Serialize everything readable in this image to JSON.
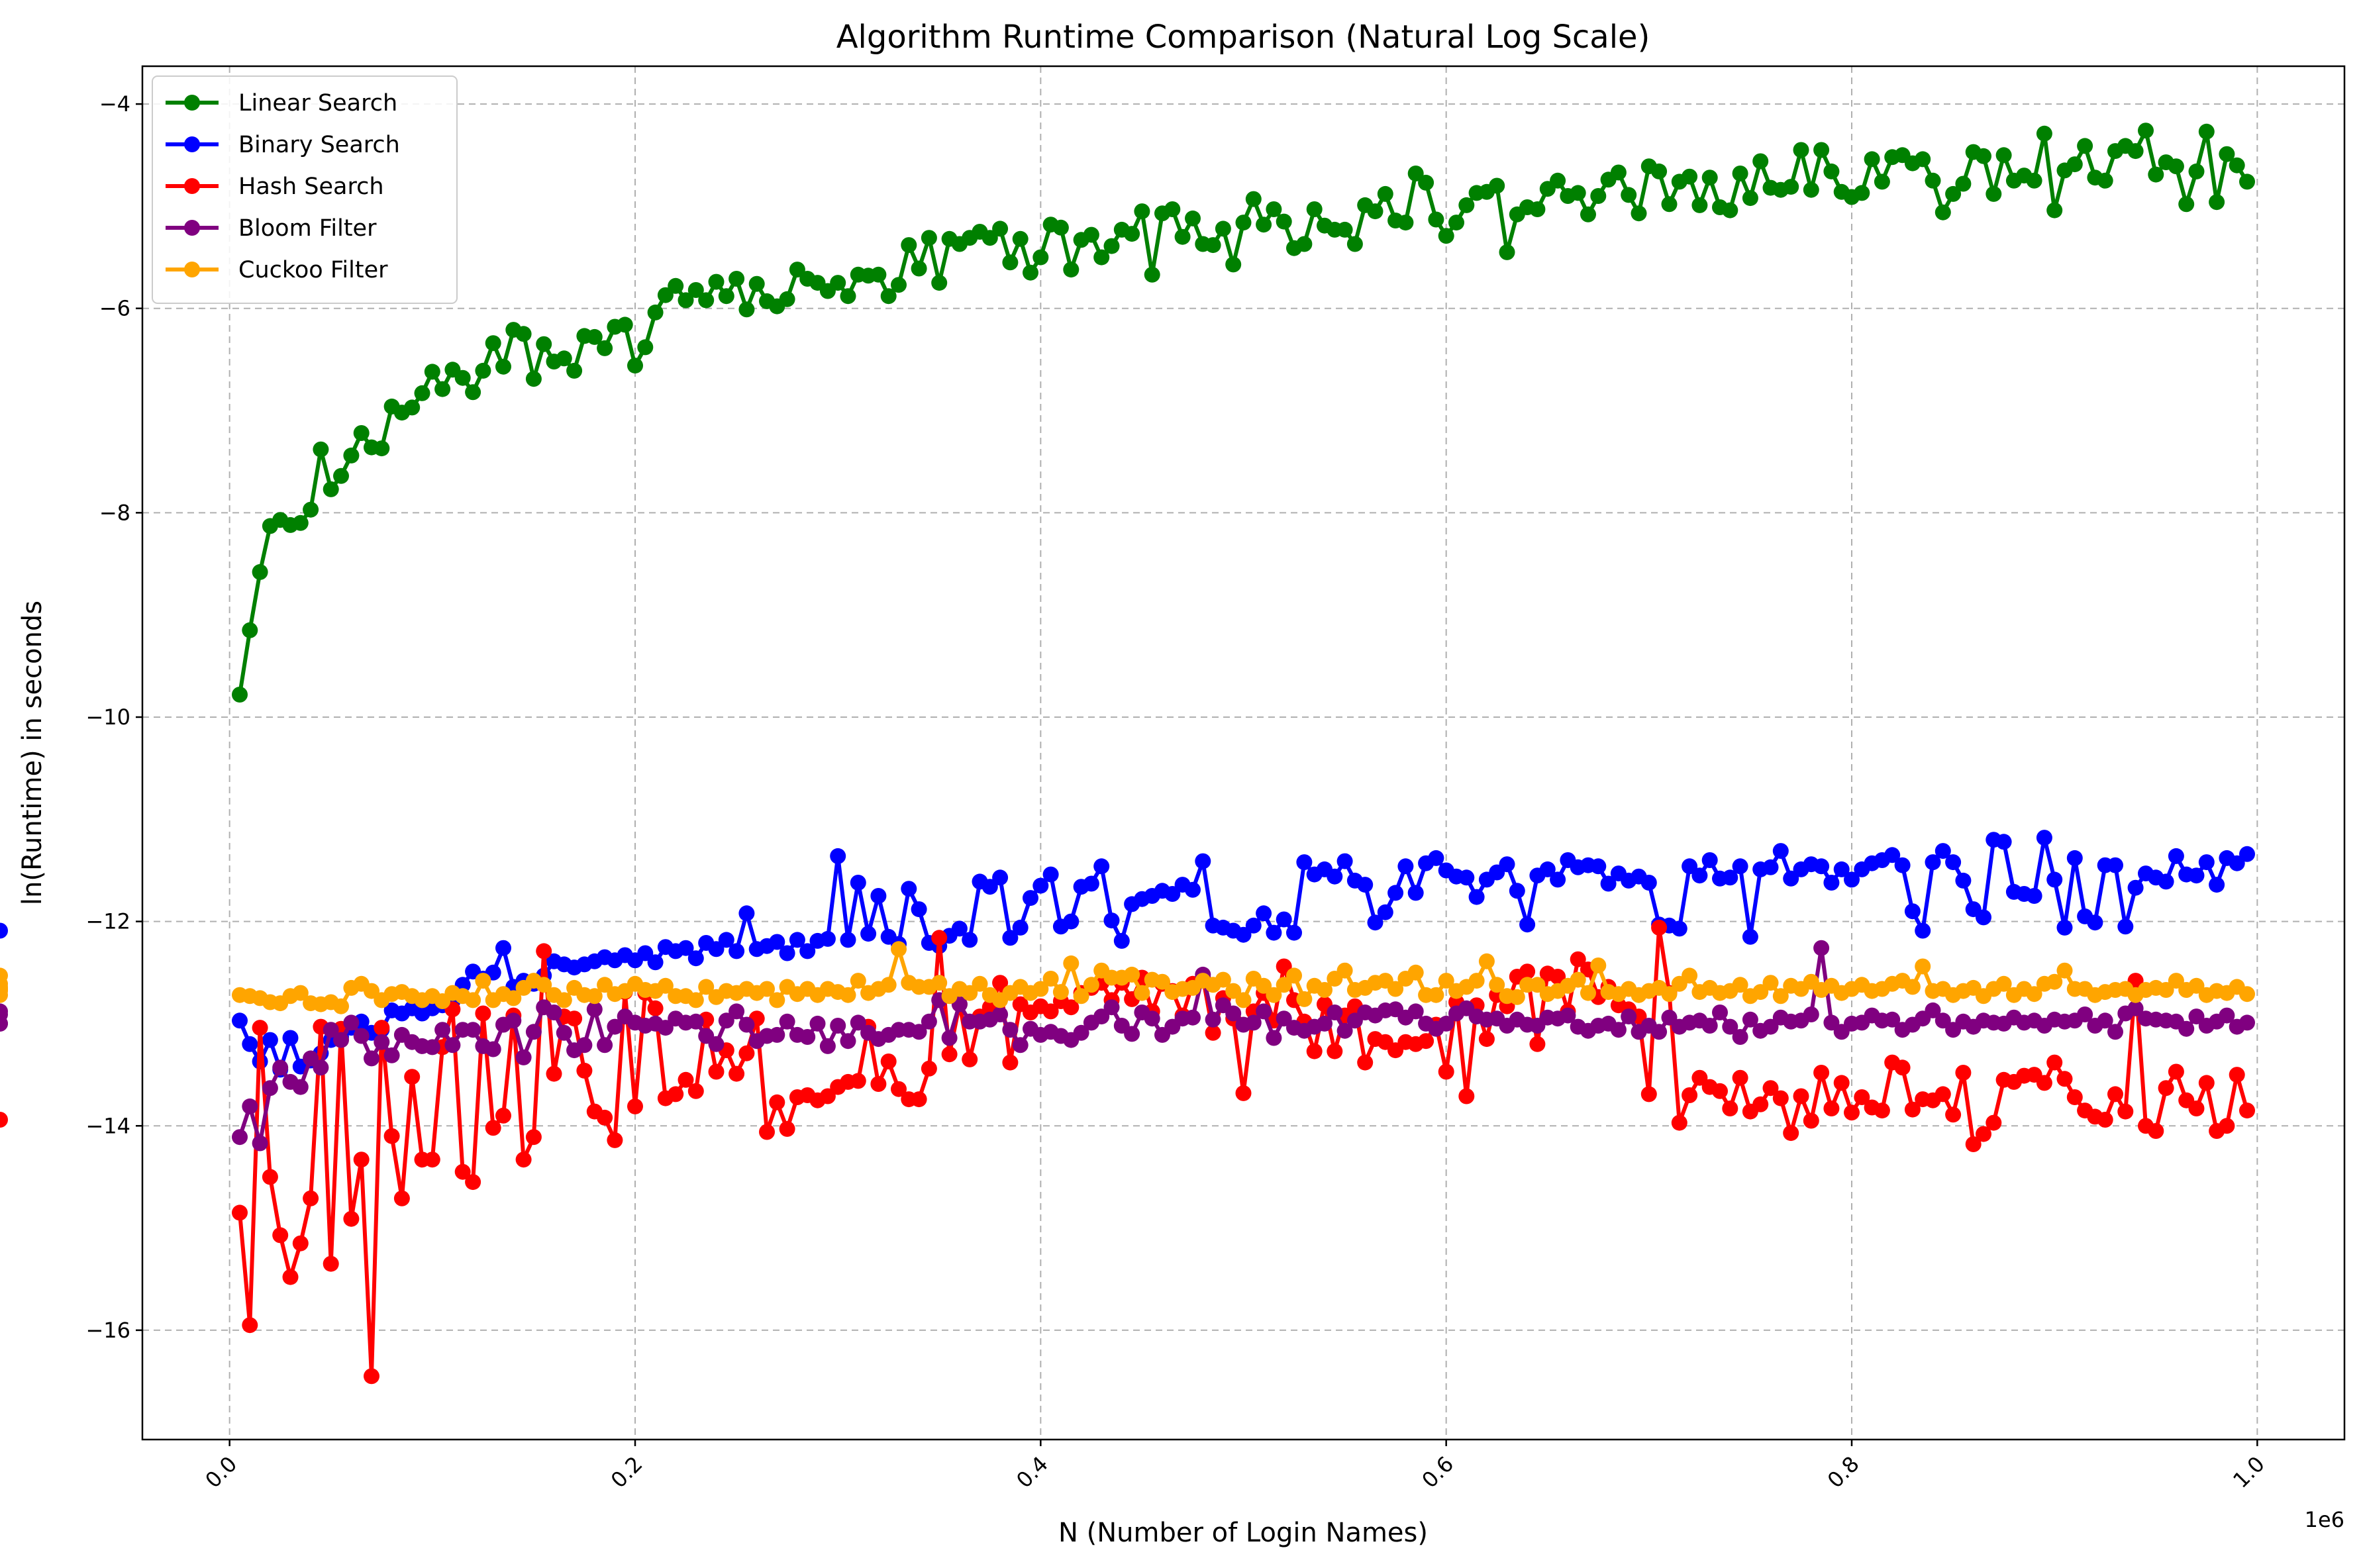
{
  "chart_data": {
    "type": "line",
    "title": "Algorithm Runtime Comparison (Natural Log Scale)",
    "xlabel": "N (Number of Login Names)",
    "ylabel": "ln(Runtime) in seconds",
    "x_offset_label": "1e6",
    "xlim": [
      -0.043,
      1.043
    ],
    "ylim": [
      -17.07,
      -3.63
    ],
    "xticks": [
      0.0,
      0.2,
      0.4,
      0.6,
      0.8,
      1.0
    ],
    "xtick_labels": [
      "0.0",
      "0.2",
      "0.4",
      "0.6",
      "0.8",
      "1.0"
    ],
    "yticks": [
      -16,
      -14,
      -12,
      -10,
      -8,
      -6,
      -4
    ],
    "ytick_labels": [
      "−16",
      "−14",
      "−12",
      "−10",
      "−8",
      "−6",
      "−4"
    ],
    "grid": true,
    "legend_position": "top-left",
    "colors": {
      "linear": "#008000",
      "binary": "#0000ff",
      "hash": "#ff0000",
      "bloom": "#800080",
      "cuckoo": "#ffa500"
    },
    "x": {
      "start": 0.005,
      "step": 0.005,
      "count": 199
    },
    "series": [
      {
        "name": "Linear Search",
        "color": "#008000",
        "values": [
          -9.78,
          -9.15,
          -8.58,
          -8.13,
          -8.07,
          -8.12,
          -8.1,
          -7.97,
          -7.38,
          -7.77,
          -7.64,
          -7.44,
          -7.22,
          -7.36,
          -7.37,
          -6.96,
          -7.02,
          -6.97,
          -6.83,
          -6.62,
          -6.79,
          -6.6,
          -6.68,
          -6.82,
          -6.61,
          -6.34,
          -6.57,
          -6.21,
          -6.25,
          -6.69,
          -6.35,
          -6.52,
          -6.49,
          -6.61,
          -6.27,
          -6.28,
          -6.39,
          -6.18,
          -6.16,
          -6.56,
          -6.38,
          -6.04,
          -5.87,
          -5.78,
          -5.92,
          -5.82,
          -5.92,
          -5.74,
          -5.88,
          -5.71,
          -6.01,
          -5.76,
          -5.93,
          -5.98,
          -5.91,
          -5.62,
          -5.71,
          -5.75,
          -5.83,
          -5.75,
          -5.88,
          -5.67,
          -5.68,
          -5.67,
          -5.88,
          -5.77,
          -5.38,
          -5.61,
          -5.31,
          -5.75,
          -5.32,
          -5.37,
          -5.31,
          -5.25,
          -5.31,
          -5.22,
          -5.55,
          -5.32,
          -5.65,
          -5.5,
          -5.18,
          -5.21,
          -5.62,
          -5.33,
          -5.28,
          -5.5,
          -5.39,
          -5.23,
          -5.27,
          -5.05,
          -5.67,
          -5.07,
          -5.03,
          -5.3,
          -5.12,
          -5.37,
          -5.38,
          -5.22,
          -5.57,
          -5.16,
          -4.93,
          -5.18,
          -5.03,
          -5.15,
          -5.41,
          -5.37,
          -5.03,
          -5.19,
          -5.23,
          -5.23,
          -5.37,
          -4.99,
          -5.05,
          -4.88,
          -5.14,
          -5.16,
          -4.68,
          -4.77,
          -5.13,
          -5.29,
          -5.16,
          -4.99,
          -4.87,
          -4.86,
          -4.8,
          -5.45,
          -5.08,
          -5.01,
          -5.03,
          -4.83,
          -4.75,
          -4.9,
          -4.87,
          -5.08,
          -4.9,
          -4.74,
          -4.67,
          -4.89,
          -5.07,
          -4.61,
          -4.66,
          -4.98,
          -4.76,
          -4.71,
          -4.99,
          -4.72,
          -5.01,
          -5.04,
          -4.68,
          -4.92,
          -4.56,
          -4.82,
          -4.84,
          -4.81,
          -4.45,
          -4.84,
          -4.45,
          -4.66,
          -4.86,
          -4.91,
          -4.87,
          -4.54,
          -4.76,
          -4.52,
          -4.5,
          -4.58,
          -4.54,
          -4.75,
          -5.06,
          -4.88,
          -4.78,
          -4.47,
          -4.51,
          -4.88,
          -4.5,
          -4.75,
          -4.7,
          -4.75,
          -4.29,
          -5.04,
          -4.65,
          -4.59,
          -4.41,
          -4.72,
          -4.75,
          -4.46,
          -4.41,
          -4.46,
          -4.26,
          -4.69,
          -4.57,
          -4.61,
          -4.98,
          -4.66,
          -4.27,
          -4.96,
          -4.49,
          -4.6,
          -4.76
        ]
      },
      {
        "name": "Binary Search",
        "color": "#0000ff",
        "values": [
          -12.97,
          -13.2,
          -13.37,
          -13.16,
          -13.45,
          -13.14,
          -13.42,
          -13.36,
          -13.29,
          -13.16,
          -13.13,
          -13.04,
          -12.98,
          -13.09,
          -13.06,
          -12.87,
          -12.9,
          -12.85,
          -12.9,
          -12.85,
          -12.82,
          -12.78,
          -12.62,
          -12.49,
          -12.56,
          -12.5,
          -12.26,
          -12.64,
          -12.58,
          -12.61,
          -12.53,
          -12.39,
          -12.42,
          -12.45,
          -12.42,
          -12.39,
          -12.35,
          -12.38,
          -12.33,
          -12.38,
          -12.31,
          -12.4,
          -12.25,
          -12.29,
          -12.26,
          -12.36,
          -12.21,
          -12.27,
          -12.18,
          -12.29,
          -11.92,
          -12.27,
          -12.24,
          -12.2,
          -12.31,
          -12.18,
          -12.29,
          -12.19,
          -12.17,
          -11.36,
          -12.18,
          -11.62,
          -12.12,
          -11.75,
          -12.15,
          -12.22,
          -11.68,
          -11.88,
          -12.21,
          -12.24,
          -12.14,
          -12.07,
          -12.18,
          -11.61,
          -11.66,
          -11.57,
          -12.16,
          -12.06,
          -11.77,
          -11.65,
          -11.54,
          -12.05,
          -12.0,
          -11.66,
          -11.63,
          -11.46,
          -11.99,
          -12.19,
          -11.83,
          -11.78,
          -11.75,
          -11.7,
          -11.73,
          -11.64,
          -11.69,
          -11.41,
          -12.04,
          -12.06,
          -12.09,
          -12.13,
          -12.04,
          -11.92,
          -12.11,
          -11.98,
          -12.11,
          -11.42,
          -11.54,
          -11.49,
          -11.56,
          -11.41,
          -11.6,
          -11.64,
          -12.01,
          -11.91,
          -11.72,
          -11.46,
          -11.72,
          -11.43,
          -11.38,
          -11.5,
          -11.56,
          -11.57,
          -11.76,
          -11.59,
          -11.52,
          -11.44,
          -11.7,
          -12.03,
          -11.55,
          -11.49,
          -11.59,
          -11.4,
          -11.47,
          -11.45,
          -11.46,
          -11.63,
          -11.53,
          -11.6,
          -11.56,
          -11.62,
          -12.03,
          -12.04,
          -12.07,
          -11.46,
          -11.55,
          -11.4,
          -11.58,
          -11.57,
          -11.46,
          -12.15,
          -11.49,
          -11.47,
          -11.31,
          -11.58,
          -11.49,
          -11.44,
          -11.46,
          -11.62,
          -11.49,
          -11.59,
          -11.49,
          -11.43,
          -11.4,
          -11.35,
          -11.45,
          -11.9,
          -12.09,
          -11.42,
          -11.31,
          -11.42,
          -11.6,
          -11.88,
          -11.96,
          -11.2,
          -11.22,
          -11.71,
          -11.73,
          -11.75,
          -11.18,
          -11.59,
          -12.06,
          -11.38,
          -11.95,
          -12.01,
          -11.45,
          -11.45,
          -12.05,
          -11.67,
          -11.53,
          -11.57,
          -11.61,
          -11.36,
          -11.54,
          -11.55,
          -11.42,
          -11.64,
          -11.38,
          -11.43,
          -11.34,
          -12.09
        ]
      },
      {
        "name": "Hash Search",
        "color": "#ff0000",
        "values": [
          -14.85,
          -15.95,
          -13.04,
          -14.5,
          -15.07,
          -15.48,
          -15.15,
          -14.71,
          -13.03,
          -15.35,
          -13.05,
          -14.91,
          -14.33,
          -16.45,
          -13.04,
          -14.1,
          -14.71,
          -13.52,
          -14.33,
          -14.33,
          -13.23,
          -12.86,
          -14.45,
          -14.55,
          -12.9,
          -14.02,
          -13.9,
          -12.92,
          -14.33,
          -14.11,
          -12.29,
          -13.49,
          -12.93,
          -12.95,
          -13.46,
          -13.86,
          -13.92,
          -14.14,
          -12.69,
          -13.81,
          -12.7,
          -12.85,
          -13.73,
          -13.69,
          -13.55,
          -13.66,
          -12.96,
          -13.47,
          -13.26,
          -13.49,
          -13.29,
          -12.95,
          -14.06,
          -13.77,
          -14.03,
          -13.72,
          -13.7,
          -13.75,
          -13.71,
          -13.62,
          -13.57,
          -13.56,
          -13.03,
          -13.59,
          -13.37,
          -13.64,
          -13.74,
          -13.74,
          -13.44,
          -12.16,
          -13.3,
          -12.81,
          -13.35,
          -12.93,
          -12.84,
          -12.6,
          -13.38,
          -12.81,
          -12.89,
          -12.83,
          -12.88,
          -12.78,
          -12.84,
          -12.7,
          -12.65,
          -12.6,
          -12.77,
          -12.6,
          -12.76,
          -12.55,
          -12.88,
          -12.61,
          -12.68,
          -12.92,
          -12.61,
          -12.55,
          -13.09,
          -12.75,
          -12.95,
          -13.68,
          -12.88,
          -12.7,
          -12.97,
          -12.44,
          -12.77,
          -12.98,
          -13.27,
          -12.81,
          -13.27,
          -12.92,
          -12.83,
          -13.38,
          -13.15,
          -13.18,
          -13.26,
          -13.18,
          -13.2,
          -13.17,
          -13.01,
          -13.47,
          -12.79,
          -13.71,
          -12.82,
          -13.15,
          -12.72,
          -12.83,
          -12.54,
          -12.49,
          -13.2,
          -12.51,
          -12.54,
          -12.88,
          -12.37,
          -12.47,
          -12.74,
          -12.64,
          -12.82,
          -12.86,
          -12.93,
          -13.69,
          -12.06,
          -12.7,
          -13.97,
          -13.7,
          -13.53,
          -13.62,
          -13.66,
          -13.83,
          -13.53,
          -13.86,
          -13.79,
          -13.63,
          -13.73,
          -14.07,
          -13.71,
          -13.95,
          -13.48,
          -13.83,
          -13.58,
          -13.87,
          -13.72,
          -13.82,
          -13.85,
          -13.38,
          -13.43,
          -13.84,
          -13.74,
          -13.75,
          -13.69,
          -13.89,
          -13.48,
          -14.18,
          -14.08,
          -13.97,
          -13.55,
          -13.57,
          -13.51,
          -13.5,
          -13.58,
          -13.38,
          -13.54,
          -13.72,
          -13.85,
          -13.91,
          -13.94,
          -13.69,
          -13.86,
          -12.58,
          -14.0,
          -14.05,
          -13.63,
          -13.47,
          -13.75,
          -13.83,
          -13.58,
          -14.05,
          -14.0,
          -13.5,
          -13.85,
          -13.94
        ]
      },
      {
        "name": "Bloom Filter",
        "color": "#800080",
        "values": [
          -14.11,
          -13.81,
          -14.17,
          -13.63,
          -13.43,
          -13.57,
          -13.62,
          -13.34,
          -13.43,
          -13.06,
          -13.16,
          -12.99,
          -13.12,
          -13.34,
          -13.18,
          -13.31,
          -13.11,
          -13.18,
          -13.22,
          -13.23,
          -13.06,
          -13.21,
          -13.06,
          -13.06,
          -13.22,
          -13.25,
          -13.01,
          -12.97,
          -13.33,
          -13.08,
          -12.84,
          -12.89,
          -13.09,
          -13.26,
          -13.21,
          -12.86,
          -13.21,
          -13.03,
          -12.93,
          -12.99,
          -13.02,
          -13.0,
          -13.04,
          -12.95,
          -12.99,
          -12.98,
          -13.12,
          -13.2,
          -12.97,
          -12.88,
          -13.01,
          -13.17,
          -13.12,
          -13.11,
          -12.98,
          -13.11,
          -13.13,
          -13.0,
          -13.22,
          -13.02,
          -13.17,
          -12.99,
          -13.09,
          -13.15,
          -13.11,
          -13.06,
          -13.06,
          -13.08,
          -12.98,
          -12.77,
          -13.14,
          -12.81,
          -12.98,
          -12.98,
          -12.96,
          -12.91,
          -13.06,
          -13.21,
          -13.05,
          -13.11,
          -13.08,
          -13.12,
          -13.16,
          -13.09,
          -12.99,
          -12.93,
          -12.84,
          -13.02,
          -13.1,
          -12.89,
          -12.95,
          -13.11,
          -13.03,
          -12.95,
          -12.94,
          -12.52,
          -12.96,
          -12.82,
          -12.9,
          -13.01,
          -12.99,
          -12.88,
          -13.14,
          -12.95,
          -13.04,
          -13.07,
          -13.03,
          -13.0,
          -12.89,
          -13.07,
          -12.97,
          -12.89,
          -12.92,
          -12.87,
          -12.86,
          -12.94,
          -12.88,
          -13.0,
          -13.05,
          -13.0,
          -12.9,
          -12.85,
          -12.93,
          -12.96,
          -12.95,
          -13.02,
          -12.96,
          -13.01,
          -13.02,
          -12.94,
          -12.95,
          -12.92,
          -13.03,
          -13.07,
          -13.02,
          -13.0,
          -13.06,
          -12.93,
          -13.08,
          -13.02,
          -13.08,
          -12.94,
          -13.03,
          -12.99,
          -12.97,
          -13.02,
          -12.89,
          -13.03,
          -13.13,
          -12.96,
          -13.07,
          -13.03,
          -12.94,
          -12.98,
          -12.97,
          -12.91,
          -12.26,
          -12.99,
          -13.08,
          -13.0,
          -12.99,
          -12.92,
          -12.97,
          -12.96,
          -13.06,
          -13.01,
          -12.95,
          -12.87,
          -12.97,
          -13.06,
          -12.98,
          -13.03,
          -12.97,
          -12.99,
          -13.0,
          -12.94,
          -12.99,
          -12.97,
          -13.02,
          -12.96,
          -12.98,
          -12.97,
          -12.91,
          -13.02,
          -12.97,
          -13.08,
          -12.9,
          -12.85,
          -12.95,
          -12.96,
          -12.97,
          -12.98,
          -13.05,
          -12.93,
          -13.02,
          -12.98,
          -12.92,
          -13.03,
          -12.99,
          -12.91,
          -13.0,
          -13.0,
          -12.88
        ]
      },
      {
        "name": "Cuckoo Filter",
        "color": "#ffa500",
        "values": [
          -12.72,
          -12.73,
          -12.75,
          -12.79,
          -12.8,
          -12.73,
          -12.7,
          -12.8,
          -12.81,
          -12.79,
          -12.83,
          -12.65,
          -12.61,
          -12.68,
          -12.77,
          -12.71,
          -12.69,
          -12.73,
          -12.77,
          -12.73,
          -12.78,
          -12.7,
          -12.73,
          -12.77,
          -12.58,
          -12.77,
          -12.71,
          -12.75,
          -12.65,
          -12.58,
          -12.62,
          -12.72,
          -12.77,
          -12.65,
          -12.72,
          -12.73,
          -12.62,
          -12.71,
          -12.68,
          -12.61,
          -12.67,
          -12.68,
          -12.63,
          -12.73,
          -12.73,
          -12.77,
          -12.64,
          -12.74,
          -12.68,
          -12.7,
          -12.66,
          -12.7,
          -12.66,
          -12.77,
          -12.64,
          -12.71,
          -12.66,
          -12.72,
          -12.66,
          -12.69,
          -12.72,
          -12.58,
          -12.7,
          -12.66,
          -12.62,
          -12.27,
          -12.6,
          -12.64,
          -12.64,
          -12.6,
          -12.73,
          -12.66,
          -12.7,
          -12.61,
          -12.72,
          -12.77,
          -12.7,
          -12.64,
          -12.7,
          -12.66,
          -12.56,
          -12.69,
          -12.41,
          -12.73,
          -12.62,
          -12.48,
          -12.55,
          -12.55,
          -12.52,
          -12.7,
          -12.57,
          -12.59,
          -12.69,
          -12.66,
          -12.65,
          -12.58,
          -12.62,
          -12.57,
          -12.68,
          -12.77,
          -12.56,
          -12.63,
          -12.72,
          -12.62,
          -12.53,
          -12.76,
          -12.63,
          -12.67,
          -12.56,
          -12.48,
          -12.67,
          -12.65,
          -12.6,
          -12.58,
          -12.66,
          -12.56,
          -12.5,
          -12.72,
          -12.72,
          -12.58,
          -12.68,
          -12.64,
          -12.58,
          -12.39,
          -12.62,
          -12.73,
          -12.74,
          -12.62,
          -12.62,
          -12.71,
          -12.68,
          -12.63,
          -12.57,
          -12.7,
          -12.43,
          -12.69,
          -12.71,
          -12.66,
          -12.72,
          -12.68,
          -12.65,
          -12.71,
          -12.61,
          -12.53,
          -12.69,
          -12.65,
          -12.7,
          -12.68,
          -12.62,
          -12.73,
          -12.69,
          -12.6,
          -12.73,
          -12.63,
          -12.66,
          -12.59,
          -12.67,
          -12.63,
          -12.7,
          -12.66,
          -12.62,
          -12.68,
          -12.66,
          -12.61,
          -12.58,
          -12.64,
          -12.44,
          -12.68,
          -12.66,
          -12.72,
          -12.68,
          -12.65,
          -12.73,
          -12.66,
          -12.61,
          -12.72,
          -12.66,
          -12.71,
          -12.61,
          -12.59,
          -12.48,
          -12.66,
          -12.66,
          -12.72,
          -12.69,
          -12.67,
          -12.66,
          -12.72,
          -12.67,
          -12.65,
          -12.67,
          -12.58,
          -12.67,
          -12.63,
          -12.72,
          -12.68,
          -12.7,
          -12.64,
          -12.71,
          -12.66,
          -12.53,
          -12.66,
          -12.64,
          -12.72,
          -12.68,
          -12.61
        ]
      }
    ]
  }
}
